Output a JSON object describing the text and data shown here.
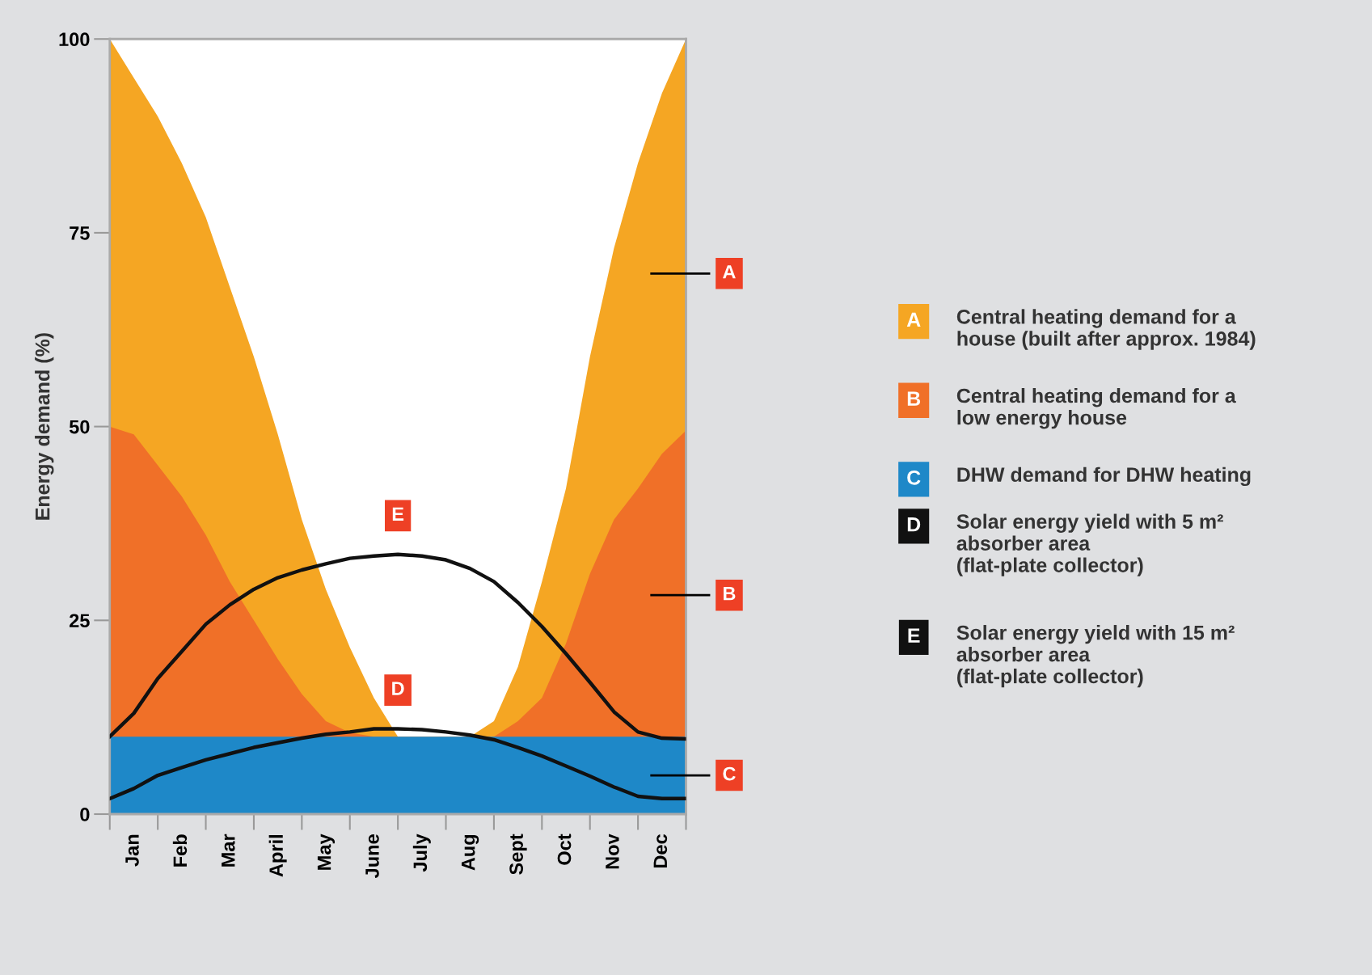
{
  "chart_data": {
    "type": "area",
    "ylabel": "Energy demand (%)",
    "categories": [
      null,
      "Jan",
      null,
      "Feb",
      null,
      "Mar",
      null,
      "April",
      null,
      "May",
      null,
      "June",
      null,
      "July",
      null,
      "Aug",
      null,
      "Sept",
      null,
      "Oct",
      null,
      "Nov",
      null,
      "Dec",
      null
    ],
    "ylim": [
      0,
      100
    ],
    "yticks": [
      0,
      25,
      50,
      75,
      100
    ],
    "series": [
      {
        "name": "Central heating demand for a\nhouse (built after approx. 1984)",
        "color": "#f5a623",
        "values": [
          100,
          95,
          90,
          84,
          77,
          68,
          59,
          49,
          38,
          29,
          21.5,
          15,
          10,
          10,
          10,
          10,
          12,
          19,
          30,
          42,
          59,
          73,
          84,
          93,
          100
        ]
      },
      {
        "name": "Central heating demand for a\nlow energy house",
        "color": "#f07028",
        "values": [
          50,
          49,
          45,
          41,
          36,
          30,
          25,
          20,
          15.5,
          12,
          10.5,
          10,
          10,
          10,
          10,
          10,
          10,
          12,
          15,
          22,
          31,
          38,
          42,
          46.5,
          49.5
        ]
      },
      {
        "name": "DHW demand for DHW heating",
        "color": "#1e88c8",
        "values": [
          10,
          10,
          10,
          10,
          10,
          10,
          10,
          10,
          10,
          10,
          10,
          10,
          10,
          10,
          10,
          10,
          10,
          10,
          10,
          10,
          10,
          10,
          10,
          10,
          10
        ]
      },
      {
        "name": "Solar energy yield with 5 m²\nabsorber area\n(flat-plate collector)",
        "type": "line",
        "color": "#111111",
        "values": [
          2,
          3.3,
          5,
          6,
          7,
          7.8,
          8.6,
          9.2,
          9.8,
          10.3,
          10.6,
          11,
          11,
          10.9,
          10.6,
          10.2,
          9.6,
          8.6,
          7.5,
          6.2,
          4.9,
          3.5,
          2.3,
          2,
          2
        ]
      },
      {
        "name": "Solar energy yield with 15 m²\nabsorber area\n(flat-plate collector)",
        "type": "line",
        "color": "#111111",
        "values": [
          10,
          13,
          17.5,
          21,
          24.5,
          27,
          29,
          30.5,
          31.5,
          32.3,
          33,
          33.3,
          33.5,
          33.3,
          32.8,
          31.7,
          30,
          27.3,
          24.2,
          20.7,
          17,
          13.2,
          10.6,
          9.8,
          9.7
        ]
      }
    ],
    "annotations": [
      "A",
      "B",
      "C",
      "D",
      "E"
    ],
    "legend": "right",
    "grid": false
  }
}
